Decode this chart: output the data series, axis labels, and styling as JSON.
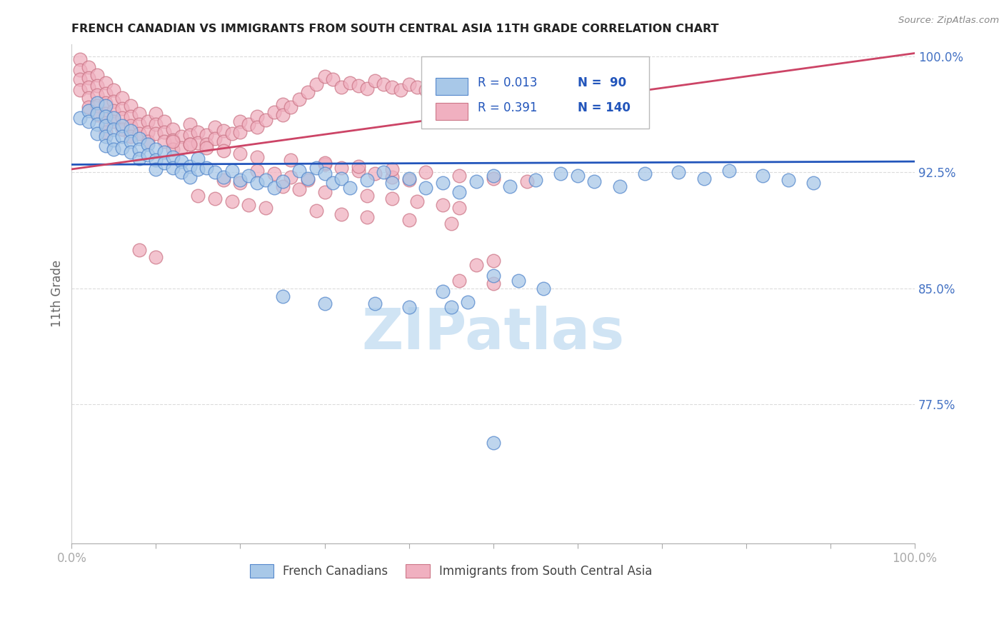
{
  "title": "FRENCH CANADIAN VS IMMIGRANTS FROM SOUTH CENTRAL ASIA 11TH GRADE CORRELATION CHART",
  "source": "Source: ZipAtlas.com",
  "ylabel": "11th Grade",
  "y_ticks": [
    0.775,
    0.85,
    0.925,
    1.0
  ],
  "y_tick_labels": [
    "77.5%",
    "85.0%",
    "92.5%",
    "100.0%"
  ],
  "x_min": 0.0,
  "x_max": 1.0,
  "y_min": 0.685,
  "y_max": 1.008,
  "blue_R": 0.013,
  "blue_N": 90,
  "pink_R": 0.391,
  "pink_N": 140,
  "blue_color": "#a8c8e8",
  "pink_color": "#f0b0c0",
  "blue_edge_color": "#5588cc",
  "pink_edge_color": "#cc7788",
  "blue_line_color": "#2255bb",
  "pink_line_color": "#cc4466",
  "legend_R_color": "#2255bb",
  "legend_N_color": "#2255bb",
  "watermark_color": "#d0e4f4",
  "tick_label_color": "#4472c4",
  "ylabel_color": "#666666",
  "blue_line_y0": 0.93,
  "blue_line_y1": 0.932,
  "pink_line_y0": 0.927,
  "pink_line_y1": 1.002,
  "blue_dots_x": [
    0.01,
    0.02,
    0.02,
    0.03,
    0.03,
    0.03,
    0.03,
    0.04,
    0.04,
    0.04,
    0.04,
    0.04,
    0.05,
    0.05,
    0.05,
    0.05,
    0.06,
    0.06,
    0.06,
    0.07,
    0.07,
    0.07,
    0.08,
    0.08,
    0.08,
    0.09,
    0.09,
    0.1,
    0.1,
    0.1,
    0.11,
    0.11,
    0.12,
    0.12,
    0.13,
    0.13,
    0.14,
    0.14,
    0.15,
    0.15,
    0.16,
    0.17,
    0.18,
    0.19,
    0.2,
    0.21,
    0.22,
    0.23,
    0.24,
    0.25,
    0.27,
    0.28,
    0.29,
    0.3,
    0.31,
    0.32,
    0.33,
    0.35,
    0.37,
    0.38,
    0.4,
    0.42,
    0.44,
    0.46,
    0.48,
    0.5,
    0.52,
    0.55,
    0.58,
    0.6,
    0.62,
    0.65,
    0.68,
    0.72,
    0.75,
    0.78,
    0.82,
    0.85,
    0.88,
    0.5,
    0.53,
    0.56,
    0.44,
    0.47,
    0.36,
    0.25,
    0.3,
    0.4,
    0.45,
    0.5
  ],
  "blue_dots_y": [
    0.96,
    0.965,
    0.958,
    0.97,
    0.963,
    0.956,
    0.95,
    0.968,
    0.961,
    0.955,
    0.948,
    0.942,
    0.96,
    0.953,
    0.946,
    0.94,
    0.955,
    0.948,
    0.941,
    0.952,
    0.945,
    0.938,
    0.947,
    0.94,
    0.934,
    0.943,
    0.936,
    0.94,
    0.933,
    0.927,
    0.938,
    0.931,
    0.935,
    0.928,
    0.932,
    0.925,
    0.929,
    0.922,
    0.934,
    0.927,
    0.928,
    0.925,
    0.922,
    0.926,
    0.92,
    0.923,
    0.918,
    0.92,
    0.915,
    0.919,
    0.926,
    0.921,
    0.928,
    0.924,
    0.918,
    0.921,
    0.915,
    0.92,
    0.925,
    0.918,
    0.921,
    0.915,
    0.918,
    0.912,
    0.919,
    0.923,
    0.916,
    0.92,
    0.924,
    0.923,
    0.919,
    0.916,
    0.924,
    0.925,
    0.921,
    0.926,
    0.923,
    0.92,
    0.918,
    0.858,
    0.855,
    0.85,
    0.848,
    0.841,
    0.84,
    0.845,
    0.84,
    0.838,
    0.838,
    0.75
  ],
  "pink_dots_x": [
    0.01,
    0.01,
    0.01,
    0.01,
    0.02,
    0.02,
    0.02,
    0.02,
    0.02,
    0.03,
    0.03,
    0.03,
    0.03,
    0.03,
    0.04,
    0.04,
    0.04,
    0.04,
    0.04,
    0.04,
    0.05,
    0.05,
    0.05,
    0.05,
    0.06,
    0.06,
    0.06,
    0.06,
    0.07,
    0.07,
    0.07,
    0.07,
    0.08,
    0.08,
    0.08,
    0.09,
    0.09,
    0.09,
    0.1,
    0.1,
    0.1,
    0.11,
    0.11,
    0.11,
    0.12,
    0.12,
    0.12,
    0.13,
    0.13,
    0.14,
    0.14,
    0.14,
    0.15,
    0.15,
    0.16,
    0.16,
    0.17,
    0.17,
    0.18,
    0.18,
    0.19,
    0.2,
    0.2,
    0.21,
    0.22,
    0.22,
    0.23,
    0.24,
    0.25,
    0.25,
    0.26,
    0.27,
    0.28,
    0.29,
    0.3,
    0.31,
    0.32,
    0.33,
    0.34,
    0.35,
    0.36,
    0.37,
    0.38,
    0.39,
    0.4,
    0.41,
    0.42,
    0.43,
    0.44,
    0.45,
    0.3,
    0.32,
    0.34,
    0.36,
    0.38,
    0.4,
    0.22,
    0.24,
    0.26,
    0.28,
    0.18,
    0.2,
    0.25,
    0.27,
    0.3,
    0.35,
    0.38,
    0.41,
    0.44,
    0.46,
    0.15,
    0.17,
    0.19,
    0.21,
    0.23,
    0.29,
    0.32,
    0.35,
    0.4,
    0.45,
    0.12,
    0.14,
    0.16,
    0.18,
    0.2,
    0.22,
    0.26,
    0.3,
    0.34,
    0.38,
    0.42,
    0.46,
    0.5,
    0.54,
    0.46,
    0.5,
    0.1,
    0.08,
    0.48,
    0.5
  ],
  "pink_dots_y": [
    0.998,
    0.991,
    0.985,
    0.978,
    0.993,
    0.986,
    0.98,
    0.973,
    0.967,
    0.988,
    0.981,
    0.975,
    0.968,
    0.962,
    0.983,
    0.976,
    0.97,
    0.963,
    0.957,
    0.951,
    0.978,
    0.971,
    0.965,
    0.958,
    0.973,
    0.966,
    0.96,
    0.953,
    0.968,
    0.961,
    0.955,
    0.948,
    0.963,
    0.956,
    0.95,
    0.958,
    0.951,
    0.945,
    0.963,
    0.956,
    0.95,
    0.958,
    0.951,
    0.945,
    0.953,
    0.946,
    0.94,
    0.948,
    0.941,
    0.956,
    0.949,
    0.943,
    0.951,
    0.944,
    0.949,
    0.943,
    0.954,
    0.947,
    0.952,
    0.945,
    0.95,
    0.958,
    0.951,
    0.956,
    0.961,
    0.954,
    0.959,
    0.964,
    0.969,
    0.962,
    0.967,
    0.972,
    0.977,
    0.982,
    0.987,
    0.985,
    0.98,
    0.983,
    0.981,
    0.979,
    0.984,
    0.982,
    0.98,
    0.978,
    0.982,
    0.98,
    0.978,
    0.976,
    0.974,
    0.972,
    0.93,
    0.928,
    0.926,
    0.924,
    0.922,
    0.92,
    0.926,
    0.924,
    0.922,
    0.92,
    0.92,
    0.918,
    0.916,
    0.914,
    0.912,
    0.91,
    0.908,
    0.906,
    0.904,
    0.902,
    0.91,
    0.908,
    0.906,
    0.904,
    0.902,
    0.9,
    0.898,
    0.896,
    0.894,
    0.892,
    0.945,
    0.943,
    0.941,
    0.939,
    0.937,
    0.935,
    0.933,
    0.931,
    0.929,
    0.927,
    0.925,
    0.923,
    0.921,
    0.919,
    0.855,
    0.853,
    0.87,
    0.875,
    0.865,
    0.868
  ]
}
